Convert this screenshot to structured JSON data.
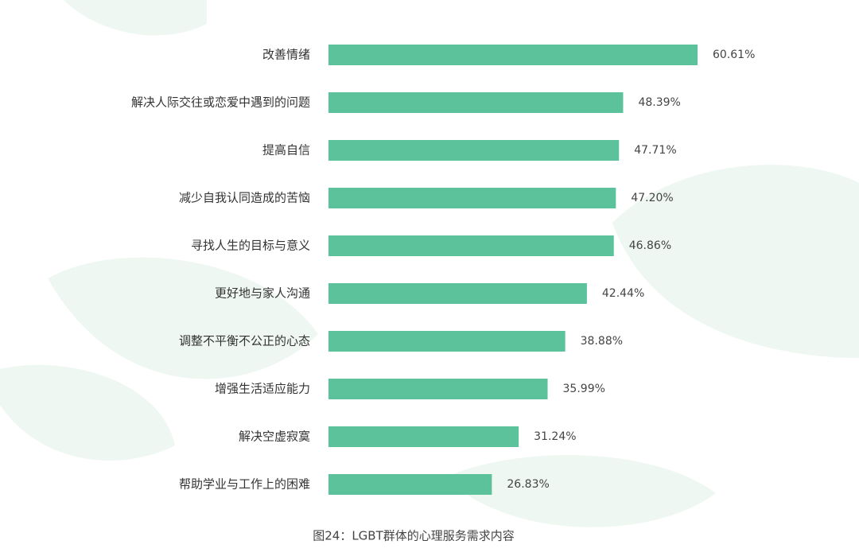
{
  "chart_data": {
    "type": "bar",
    "orientation": "horizontal",
    "title": "图24：LGBT群体的心理服务需求内容",
    "categories": [
      "改善情绪",
      "解决人际交往或恋爱中遇到的问题",
      "提高自信",
      "减少自我认同造成的苦恼",
      "寻找人生的目标与意义",
      "更好地与家人沟通",
      "调整不平衡不公正的心态",
      "增强生活适应能力",
      "解决空虚寂寞",
      "帮助学业与工作上的困难"
    ],
    "values": [
      60.61,
      48.39,
      47.71,
      47.2,
      46.86,
      42.44,
      38.88,
      35.99,
      31.24,
      26.83
    ],
    "value_labels": [
      "60.61%",
      "48.39%",
      "47.71%",
      "47.20%",
      "46.86%",
      "42.44%",
      "38.88%",
      "35.99%",
      "31.24%",
      "26.83%"
    ],
    "color": "#5cc29b"
  }
}
